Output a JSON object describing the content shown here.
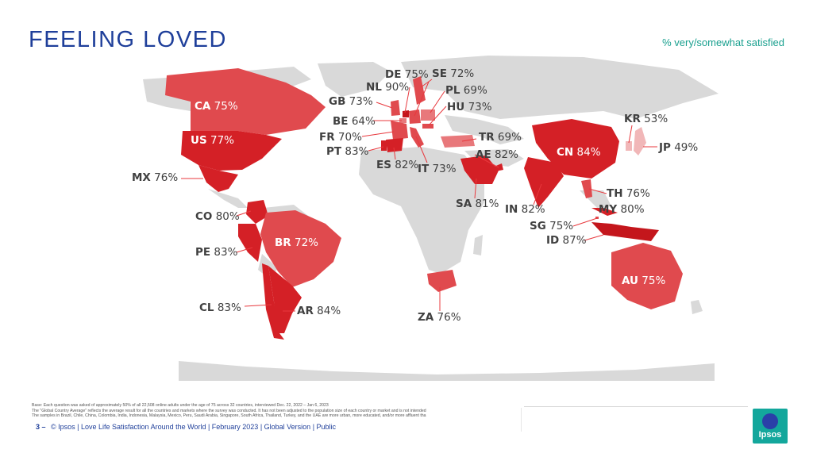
{
  "header": {
    "title": "FEELING LOVED",
    "subtitle": "% very/somewhat satisfied"
  },
  "map": {
    "colors": {
      "land": "#d9d9d9",
      "high": "#d42026",
      "mid": "#e04a4e",
      "low": "#e8787b",
      "lowest": "#f1b7b8",
      "leader": "#e8383d"
    },
    "countries": [
      {
        "code": "CA",
        "value": "75%",
        "label": "CA 75%"
      },
      {
        "code": "US",
        "value": "77%",
        "label": "US 77%"
      },
      {
        "code": "MX",
        "value": "76%",
        "label": "MX 76%"
      },
      {
        "code": "CO",
        "value": "80%",
        "label": "CO 80%"
      },
      {
        "code": "PE",
        "value": "83%",
        "label": "PE 83%"
      },
      {
        "code": "BR",
        "value": "72%",
        "label": "BR 72%"
      },
      {
        "code": "CL",
        "value": "83%",
        "label": "CL 83%"
      },
      {
        "code": "AR",
        "value": "84%",
        "label": "AR 84%"
      },
      {
        "code": "GB",
        "value": "73%",
        "label": "GB 73%"
      },
      {
        "code": "NL",
        "value": "90%",
        "label": "NL 90%"
      },
      {
        "code": "DE",
        "value": "75%",
        "label": "DE 75%"
      },
      {
        "code": "SE",
        "value": "72%",
        "label": "SE 72%"
      },
      {
        "code": "PL",
        "value": "69%",
        "label": "PL 69%"
      },
      {
        "code": "HU",
        "value": "73%",
        "label": "HU 73%"
      },
      {
        "code": "BE",
        "value": "64%",
        "label": "BE 64%"
      },
      {
        "code": "FR",
        "value": "70%",
        "label": "FR 70%"
      },
      {
        "code": "PT",
        "value": "83%",
        "label": "PT 83%"
      },
      {
        "code": "ES",
        "value": "82%",
        "label": "ES 82%"
      },
      {
        "code": "IT",
        "value": "73%",
        "label": "IT 73%"
      },
      {
        "code": "TR",
        "value": "69%",
        "label": "TR 69%"
      },
      {
        "code": "AE",
        "value": "82%",
        "label": "AE 82%"
      },
      {
        "code": "SA",
        "value": "81%",
        "label": "SA 81%"
      },
      {
        "code": "ZA",
        "value": "76%",
        "label": "ZA 76%"
      },
      {
        "code": "IN",
        "value": "82%",
        "label": "IN 82%"
      },
      {
        "code": "CN",
        "value": "84%",
        "label": "CN 84%"
      },
      {
        "code": "KR",
        "value": "53%",
        "label": "KR 53%"
      },
      {
        "code": "JP",
        "value": "49%",
        "label": "JP 49%"
      },
      {
        "code": "TH",
        "value": "76%",
        "label": "TH 76%"
      },
      {
        "code": "MY",
        "value": "80%",
        "label": "MY 80%"
      },
      {
        "code": "SG",
        "value": "75%",
        "label": "SG 75%"
      },
      {
        "code": "ID",
        "value": "87%",
        "label": "ID 87%"
      },
      {
        "code": "AU",
        "value": "75%",
        "label": "AU 75%"
      }
    ]
  },
  "footnote": {
    "line1": "Base: Each question was asked of approximately 50% of all 22,508 online adults under the age of 75 across 32 countries, interviewed Dec. 22, 2022 – Jan 6, 2023",
    "line2": "The \"Global Country Average\" reflects the average result for all the countries and markets where the survey was conducted. It has not been adjusted to the population size of each country or market and is not intended",
    "line3": "The samples in Brazil, Chile, China, Colombia, India, Indonesia, Malaysia, Mexico, Peru, Saudi Arabia, Singapore, South Africa, Thailand, Turkey, and the UAE are more urban, more educated, and/or more affluent tha"
  },
  "footer": {
    "page": "3 –",
    "text": "© Ipsos | Love Life Satisfaction Around the World | February 2023 | Global Version | Public"
  },
  "logo": {
    "text": "Ipsos"
  }
}
